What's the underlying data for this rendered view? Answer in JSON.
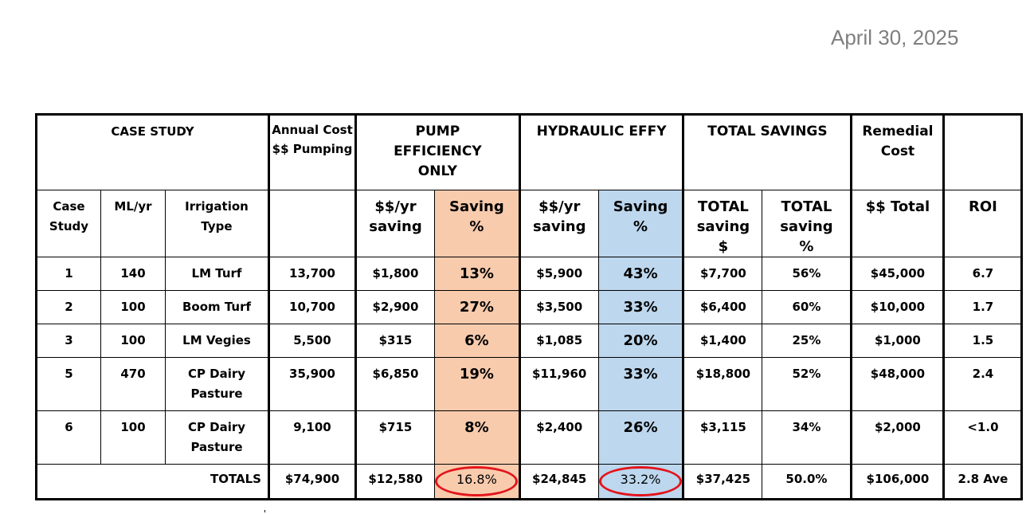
{
  "date": "April 30, 2025",
  "header": {
    "case_study": "CASE STUDY",
    "annual_cost": "Annual Cost $$ Pumping",
    "pump_efficiency": "PUMP EFFICIENCY ONLY",
    "hydraulic_effy": "HYDRAULIC EFFY",
    "total_savings": "TOTAL SAVINGS",
    "remedial_cost": "Remedial Cost",
    "blank": ""
  },
  "subheader": {
    "case_study": "Case Study",
    "ml_yr": "ML/yr",
    "irrigation_type": "Irrigation Type",
    "annual_blank": "",
    "pump_saving": "$$/yr saving",
    "pump_saving_pct": "Saving %",
    "hyd_saving": "$$/yr saving",
    "hyd_saving_pct": "Saving %",
    "total_saving_dollar": "TOTAL saving $",
    "total_saving_pct": "TOTAL saving %",
    "remedial_total": "$$ Total",
    "roi": "ROI"
  },
  "rows": [
    {
      "case": "1",
      "ml": "140",
      "type": "LM Turf",
      "annual": "13,700",
      "pump_saving": "$1,800",
      "pump_pct": "13%",
      "hyd_saving": "$5,900",
      "hyd_pct": "43%",
      "total_saving": "$7,700",
      "total_pct": "56%",
      "remedial": "$45,000",
      "roi": "6.7"
    },
    {
      "case": "2",
      "ml": "100",
      "type": "Boom Turf",
      "annual": "10,700",
      "pump_saving": "$2,900",
      "pump_pct": "27%",
      "hyd_saving": "$3,500",
      "hyd_pct": "33%",
      "total_saving": "$6,400",
      "total_pct": "60%",
      "remedial": "$10,000",
      "roi": "1.7"
    },
    {
      "case": "3",
      "ml": "100",
      "type": "LM Vegies",
      "annual": "5,500",
      "pump_saving": "$315",
      "pump_pct": "6%",
      "hyd_saving": "$1,085",
      "hyd_pct": "20%",
      "total_saving": "$1,400",
      "total_pct": "25%",
      "remedial": "$1,000",
      "roi": "1.5"
    },
    {
      "case": "5",
      "ml": "470",
      "type": "CP Dairy Pasture",
      "annual": "35,900",
      "pump_saving": "$6,850",
      "pump_pct": "19%",
      "hyd_saving": "$11,960",
      "hyd_pct": "33%",
      "total_saving": "$18,800",
      "total_pct": "52%",
      "remedial": "$48,000",
      "roi": "2.4"
    },
    {
      "case": "6",
      "ml": "100",
      "type": "CP Dairy Pasture",
      "annual": "9,100",
      "pump_saving": "$715",
      "pump_pct": "8%",
      "hyd_saving": "$2,400",
      "hyd_pct": "26%",
      "total_saving": "$3,115",
      "total_pct": "34%",
      "remedial": "$2,000",
      "roi": "<1.0"
    }
  ],
  "totals": {
    "label": "TOTALS",
    "annual": "$74,900",
    "pump_saving": "$12,580",
    "pump_pct": "16.8%",
    "hyd_saving": "$24,845",
    "hyd_pct": "33.2%",
    "total_saving": "$37,425",
    "total_pct": "50.0%",
    "remedial": "$106,000",
    "roi": "2.8 Ave"
  },
  "colors": {
    "pump_highlight": "#f8cbad",
    "hydraulic_highlight": "#bdd7ee",
    "circle_annotation": "#e3141b",
    "date_text": "#7f7f7f"
  }
}
